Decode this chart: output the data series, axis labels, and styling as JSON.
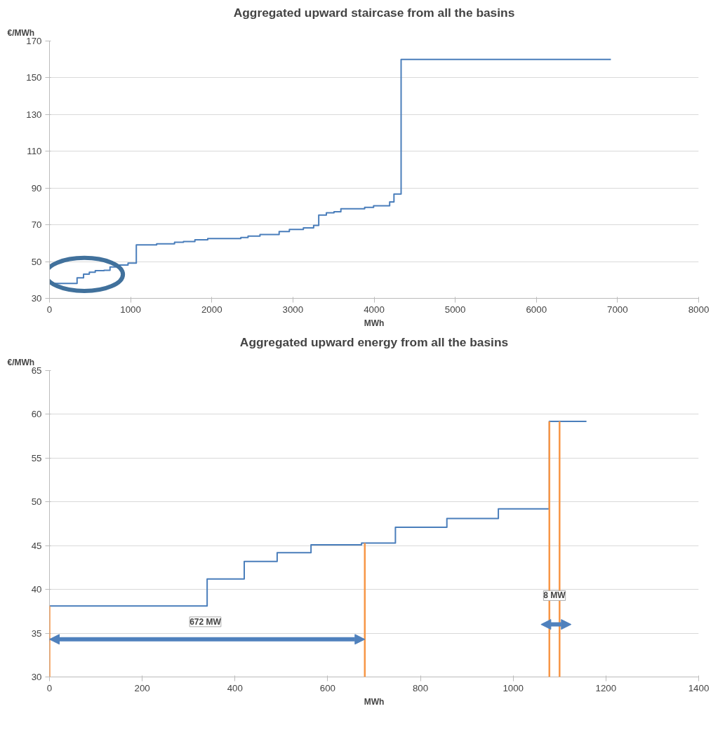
{
  "chart_data": [
    {
      "type": "step",
      "title": "Aggregated upward staircase from all the basins",
      "xlabel": "MWh",
      "ylabel": "€/MWh",
      "x": [
        0,
        340,
        420,
        491,
        564,
        673,
        746,
        857,
        968,
        1070,
        1321,
        1541,
        1651,
        1792,
        1950,
        2358,
        2447,
        2594,
        2830,
        2956,
        3129,
        3255,
        3318,
        3412,
        3506,
        3591,
        3884,
        3994,
        4192,
        4245,
        4333,
        6918
      ],
      "series": [
        {
          "color": "#4a7ebb",
          "values": [
            38.1,
            41.2,
            43.2,
            44.2,
            45.1,
            45.3,
            47.1,
            48.1,
            49.2,
            59.1,
            59.7,
            60.5,
            60.9,
            61.9,
            62.5,
            63.1,
            63.9,
            64.7,
            66.3,
            67.5,
            68.3,
            69.7,
            75.3,
            76.5,
            77.1,
            78.7,
            79.5,
            80.4,
            82.5,
            86.7,
            160,
            160
          ]
        }
      ],
      "xlim": [
        0,
        8000
      ],
      "ylim": [
        30,
        170
      ],
      "xticks": [
        0,
        1000,
        2000,
        3000,
        4000,
        5000,
        6000,
        7000,
        8000
      ],
      "yticks": [
        30,
        50,
        70,
        90,
        110,
        130,
        150,
        170
      ],
      "grid": "y",
      "line_style": "solid"
    },
    {
      "type": "step",
      "title": "Aggregated upward energy from all the basins",
      "xlabel": "MWh",
      "ylabel": "€/MWh",
      "x": [
        0,
        340,
        420,
        491,
        564,
        673,
        746,
        857,
        968,
        1078,
        1158
      ],
      "series": [
        {
          "color": "#4a7ebb",
          "values": [
            38.1,
            41.2,
            43.2,
            44.2,
            45.1,
            45.3,
            47.1,
            48.1,
            49.2,
            59.2,
            59.2
          ]
        }
      ],
      "xlim": [
        0,
        1400
      ],
      "ylim": [
        30,
        65
      ],
      "xticks": [
        0,
        200,
        400,
        600,
        800,
        1000,
        1200,
        1400
      ],
      "yticks": [
        30,
        35,
        40,
        45,
        50,
        55,
        60,
        65
      ],
      "grid": "y",
      "line_style": "solid",
      "ref_lines": [
        {
          "axis": "x",
          "value": 0,
          "color": "#f79646"
        },
        {
          "axis": "x",
          "value": 680,
          "color": "#f79646"
        },
        {
          "axis": "x",
          "value": 1078,
          "color": "#f79646"
        },
        {
          "axis": "x",
          "value": 1100,
          "color": "#f79646"
        }
      ],
      "annotations": [
        "672 MW",
        "8 MW"
      ]
    }
  ]
}
